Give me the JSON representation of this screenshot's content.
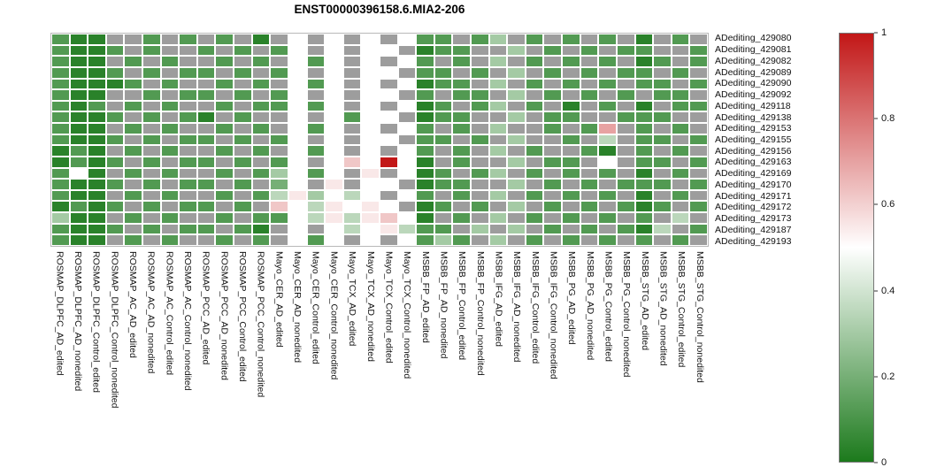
{
  "chart_data": {
    "type": "heatmap",
    "title": "ENST00000396158.6.MIA2-206",
    "na_color": "#9d9d9d",
    "colormap": {
      "low": "#1c7a1c",
      "mid": "#ffffff",
      "high": "#c21717",
      "domain": [
        0,
        0.5,
        1
      ]
    },
    "colorbar": {
      "min": 0,
      "max": 1,
      "ticks": [
        1,
        0.8,
        0.6,
        0.4,
        0.2,
        0
      ],
      "position": "right"
    },
    "legend_note": "gray cells = missing value (NA)",
    "rows": [
      "ADediting_429080",
      "ADediting_429081",
      "ADediting_429082",
      "ADediting_429089",
      "ADediting_429090",
      "ADediting_429092",
      "ADediting_429118",
      "ADediting_429138",
      "ADediting_429153",
      "ADediting_429155",
      "ADediting_429156",
      "ADediting_429163",
      "ADediting_429169",
      "ADediting_429170",
      "ADediting_429171",
      "ADediting_429172",
      "ADediting_429173",
      "ADediting_429187",
      "ADediting_429193"
    ],
    "columns": [
      "ROSMAP_DLPFC_AD_edited",
      "ROSMAP_DLPFC_AD_nonedited",
      "ROSMAP_DLPFC_Control_edited",
      "ROSMAP_DLPFC_Control_nonedited",
      "ROSMAP_AC_AD_edited",
      "ROSMAP_AC_AD_nonedited",
      "ROSMAP_AC_Control_edited",
      "ROSMAP_AC_Control_nonedited",
      "ROSMAP_PCC_AD_edited",
      "ROSMAP_PCC_AD_nonedited",
      "ROSMAP_PCC_Control_edited",
      "ROSMAP_PCC_Control_nonedited",
      "Mayo_CER_AD_edited",
      "Mayo_CER_AD_nonedited",
      "Mayo_CER_Control_edited",
      "Mayo_CER_Control_nonedited",
      "Mayo_TCX_AD_edited",
      "Mayo_TCX_AD_nonedited",
      "Mayo_TCX_Control_edited",
      "Mayo_TCX_Control_nonedited",
      "MSBB_FP_AD_edited",
      "MSBB_FP_AD_nonedited",
      "MSBB_FP_Control_edited",
      "MSBB_FP_Control_nonedited",
      "MSBB_IFG_AD_edited",
      "MSBB_IFG_AD_nonedited",
      "MSBB_IFG_Control_edited",
      "MSBB_IFG_Control_nonedited",
      "MSBB_PG_AD_edited",
      "MSBB_PG_AD_nonedited",
      "MSBB_PG_Control_edited",
      "MSBB_PG_Control_nonedited",
      "MSBB_STG_AD_edited",
      "MSBB_STG_AD_nonedited",
      "MSBB_STG_Control_edited",
      "MSBB_STG_Control_nonedited"
    ],
    "values": [
      [
        0.12,
        0.03,
        0.03,
        null,
        null,
        0.12,
        null,
        0.12,
        null,
        0.12,
        null,
        0.03,
        null,
        0.5,
        null,
        0.5,
        null,
        0.5,
        null,
        0.5,
        0.12,
        0.12,
        null,
        0.12,
        0.3,
        null,
        0.12,
        null,
        0.12,
        null,
        0.12,
        null,
        0.03,
        null,
        0.12,
        null
      ],
      [
        0.12,
        0.03,
        0.03,
        0.12,
        null,
        0.12,
        null,
        null,
        0.12,
        null,
        0.12,
        null,
        0.12,
        0.5,
        null,
        0.5,
        null,
        0.5,
        0.5,
        null,
        0.03,
        0.12,
        0.12,
        null,
        null,
        0.3,
        null,
        0.12,
        null,
        0.12,
        null,
        0.12,
        0.12,
        null,
        null,
        0.12
      ],
      [
        0.12,
        0.03,
        0.03,
        null,
        0.12,
        null,
        0.12,
        null,
        null,
        0.12,
        null,
        0.12,
        null,
        0.5,
        0.12,
        0.5,
        null,
        0.5,
        null,
        0.5,
        0.12,
        null,
        0.12,
        null,
        0.3,
        null,
        0.12,
        null,
        0.12,
        null,
        0.12,
        null,
        0.03,
        0.12,
        null,
        0.12
      ],
      [
        0.12,
        0.03,
        0.03,
        0.12,
        null,
        0.12,
        null,
        0.12,
        0.12,
        null,
        0.12,
        null,
        0.12,
        0.5,
        null,
        0.5,
        null,
        0.5,
        0.5,
        null,
        0.12,
        0.12,
        null,
        0.12,
        null,
        0.3,
        null,
        0.12,
        null,
        0.12,
        null,
        0.12,
        0.12,
        null,
        0.12,
        null
      ],
      [
        0.12,
        0.03,
        0.03,
        0.03,
        0.12,
        null,
        0.12,
        null,
        null,
        0.12,
        null,
        0.12,
        null,
        0.5,
        0.12,
        0.5,
        null,
        0.5,
        null,
        0.5,
        0.03,
        0.12,
        0.12,
        null,
        0.3,
        null,
        0.12,
        null,
        0.12,
        null,
        0.12,
        null,
        0.12,
        0.12,
        null,
        0.12
      ],
      [
        0.12,
        0.03,
        0.03,
        null,
        null,
        0.12,
        null,
        0.12,
        0.12,
        null,
        0.12,
        null,
        0.12,
        0.5,
        null,
        0.5,
        null,
        0.5,
        0.5,
        null,
        0.12,
        null,
        0.12,
        0.12,
        null,
        0.3,
        null,
        0.12,
        null,
        0.12,
        null,
        0.12,
        null,
        0.12,
        0.12,
        null
      ],
      [
        0.12,
        0.03,
        0.12,
        null,
        0.12,
        null,
        0.12,
        null,
        null,
        0.12,
        null,
        0.12,
        0.12,
        0.5,
        0.12,
        0.5,
        null,
        0.5,
        null,
        0.5,
        0.03,
        0.12,
        null,
        0.12,
        0.3,
        null,
        0.12,
        null,
        0.03,
        null,
        0.12,
        null,
        0.03,
        null,
        0.12,
        0.12
      ],
      [
        0.12,
        0.03,
        0.03,
        0.12,
        null,
        0.12,
        null,
        0.12,
        0.03,
        null,
        0.12,
        null,
        null,
        0.5,
        null,
        0.5,
        0.12,
        0.5,
        0.5,
        null,
        0.03,
        0.12,
        0.12,
        null,
        null,
        0.3,
        null,
        0.12,
        0.12,
        null,
        null,
        0.12,
        0.12,
        0.12,
        null,
        null
      ],
      [
        0.12,
        0.03,
        0.03,
        null,
        0.12,
        null,
        0.12,
        null,
        null,
        0.12,
        null,
        0.12,
        null,
        0.5,
        0.12,
        0.5,
        null,
        0.5,
        null,
        0.5,
        0.12,
        null,
        0.12,
        null,
        0.3,
        null,
        null,
        0.12,
        null,
        0.12,
        0.7,
        null,
        0.12,
        null,
        0.12,
        null
      ],
      [
        0.12,
        0.03,
        0.03,
        0.12,
        null,
        0.12,
        null,
        0.12,
        0.12,
        null,
        0.12,
        null,
        0.12,
        0.5,
        null,
        0.5,
        null,
        0.5,
        0.5,
        null,
        0.12,
        0.12,
        null,
        0.12,
        null,
        0.3,
        null,
        null,
        0.12,
        null,
        0.35,
        null,
        0.12,
        0.12,
        null,
        0.12
      ],
      [
        0.03,
        0.12,
        0.03,
        null,
        0.12,
        null,
        0.12,
        null,
        null,
        0.12,
        null,
        0.12,
        null,
        0.5,
        0.12,
        0.5,
        null,
        0.5,
        null,
        0.5,
        0.12,
        null,
        0.12,
        null,
        0.3,
        null,
        0.12,
        null,
        null,
        0.12,
        0.03,
        null,
        0.12,
        null,
        0.12,
        null
      ],
      [
        0.03,
        0.12,
        0.03,
        0.12,
        null,
        0.12,
        null,
        0.12,
        0.12,
        null,
        0.12,
        null,
        0.12,
        0.5,
        null,
        0.5,
        0.62,
        0.5,
        1,
        0.5,
        0.03,
        null,
        0.12,
        null,
        null,
        0.3,
        null,
        0.12,
        0.12,
        null,
        0.5,
        null,
        0.12,
        0.12,
        null,
        0.12
      ],
      [
        0.12,
        0.5,
        0.03,
        null,
        0.12,
        null,
        0.12,
        null,
        null,
        0.12,
        null,
        0.12,
        0.3,
        0.5,
        0.12,
        0.5,
        null,
        0.55,
        null,
        0.5,
        0.03,
        0.12,
        null,
        0.12,
        0.3,
        null,
        0.12,
        null,
        0.12,
        null,
        0.12,
        null,
        0.03,
        null,
        0.12,
        null
      ],
      [
        0.12,
        0.03,
        0.03,
        0.12,
        null,
        0.12,
        null,
        0.12,
        0.12,
        null,
        0.12,
        null,
        0.2,
        0.5,
        null,
        0.55,
        null,
        0.5,
        0.5,
        null,
        0.03,
        0.12,
        0.12,
        null,
        null,
        0.3,
        null,
        0.12,
        null,
        0.12,
        null,
        0.12,
        0.12,
        0.12,
        null,
        0.12
      ],
      [
        0.12,
        0.03,
        0.03,
        null,
        0.12,
        null,
        0.12,
        null,
        null,
        0.12,
        null,
        0.12,
        0.35,
        0.55,
        0.3,
        0.5,
        0.35,
        0.5,
        null,
        0.5,
        0.12,
        null,
        0.12,
        null,
        0.3,
        null,
        0.12,
        null,
        0.12,
        null,
        0.12,
        null,
        0.03,
        null,
        0.12,
        null
      ],
      [
        0.03,
        0.12,
        0.03,
        0.12,
        null,
        0.12,
        null,
        0.12,
        0.12,
        null,
        0.12,
        null,
        0.62,
        0.5,
        0.35,
        0.55,
        0.5,
        0.55,
        0.5,
        null,
        0.03,
        0.12,
        null,
        0.12,
        null,
        0.3,
        null,
        0.12,
        null,
        0.12,
        null,
        0.12,
        0.03,
        0.12,
        null,
        0.12
      ],
      [
        0.3,
        0.03,
        0.03,
        null,
        0.12,
        null,
        0.12,
        null,
        null,
        0.12,
        null,
        0.12,
        0.12,
        0.5,
        0.35,
        0.55,
        0.35,
        0.55,
        0.62,
        0.5,
        0.03,
        null,
        0.12,
        null,
        0.3,
        null,
        0.12,
        null,
        0.12,
        null,
        0.12,
        null,
        0.12,
        null,
        0.35,
        null
      ],
      [
        0.12,
        0.03,
        0.03,
        0.12,
        null,
        0.12,
        null,
        0.12,
        0.12,
        null,
        0.12,
        0.03,
        null,
        0.5,
        null,
        0.5,
        0.35,
        0.5,
        0.55,
        0.35,
        0.12,
        0.12,
        null,
        0.3,
        null,
        0.3,
        null,
        0.12,
        null,
        0.12,
        null,
        0.12,
        0.03,
        0.35,
        null,
        0.12
      ],
      [
        0.12,
        0.03,
        0.03,
        null,
        0.12,
        null,
        0.12,
        null,
        null,
        0.12,
        null,
        0.12,
        null,
        0.5,
        0.12,
        0.5,
        null,
        0.5,
        null,
        0.5,
        0.12,
        0.3,
        0.12,
        null,
        0.3,
        null,
        0.12,
        null,
        0.12,
        null,
        0.12,
        null,
        0.12,
        null,
        0.12,
        null
      ]
    ]
  }
}
